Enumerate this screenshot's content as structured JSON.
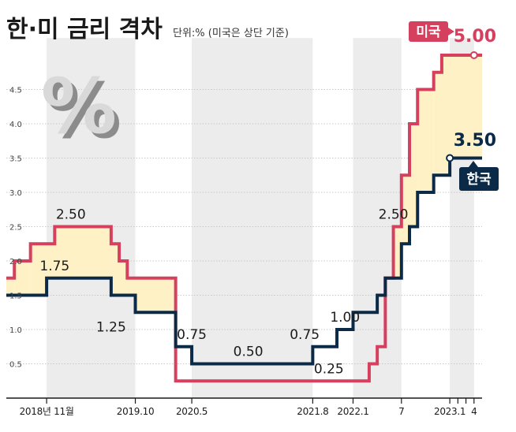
{
  "chart_data": {
    "type": "line",
    "step": true,
    "title": "한·미 금리 격차",
    "subtitle": "단위:% (미국은 상단 기준)",
    "ylim": [
      0,
      5.25
    ],
    "yticks": [
      0.5,
      1.0,
      1.5,
      2.0,
      2.5,
      3.0,
      3.5,
      4.0,
      4.5
    ],
    "ytick_labels": [
      "0.5",
      "1.0",
      "1.5",
      "2.0",
      "2.5",
      "3.0",
      "3.5",
      "4.0",
      "4.5"
    ],
    "xlim": [
      "2018-06",
      "2023-05"
    ],
    "x_ticks": [
      {
        "label": "2018년 11월",
        "x": "2018-11"
      },
      {
        "label": "2019.10",
        "x": "2019-10"
      },
      {
        "label": "2020.5",
        "x": "2020-05"
      },
      {
        "label": "2021.8",
        "x": "2021-08"
      },
      {
        "label": "2022.1",
        "x": "2022-01"
      },
      {
        "label": "7",
        "x": "2022-07"
      },
      {
        "label": "2023.1",
        "x": "2023-01"
      },
      {
        "label": "4",
        "x": "2023-04"
      }
    ],
    "extra_ticks": [
      "2023-02",
      "2023-03"
    ],
    "shaded_bands": [
      [
        "2018-11",
        "2019-10"
      ],
      [
        "2020-05",
        "2021-08"
      ],
      [
        "2022-01",
        "2022-07"
      ],
      [
        "2023-01",
        "2023-04"
      ]
    ],
    "series": [
      {
        "name": "미국",
        "color": "#d5405f",
        "points": [
          [
            "2018-06",
            1.75
          ],
          [
            "2018-07",
            2.0
          ],
          [
            "2018-09",
            2.25
          ],
          [
            "2018-12",
            2.5
          ],
          [
            "2019-07",
            2.25
          ],
          [
            "2019-08",
            2.0
          ],
          [
            "2019-09",
            1.75
          ],
          [
            "2020-03",
            0.25
          ],
          [
            "2022-03",
            0.5
          ],
          [
            "2022-04",
            0.75
          ],
          [
            "2022-05",
            1.75
          ],
          [
            "2022-06",
            2.5
          ],
          [
            "2022-07",
            3.25
          ],
          [
            "2022-08",
            4.0
          ],
          [
            "2022-09",
            4.5
          ],
          [
            "2022-11",
            4.75
          ],
          [
            "2022-12",
            5.0
          ],
          [
            "2023-05",
            5.0
          ]
        ]
      },
      {
        "name": "한국",
        "color": "#0b2a47",
        "points": [
          [
            "2018-06",
            1.5
          ],
          [
            "2018-11",
            1.75
          ],
          [
            "2019-07",
            1.5
          ],
          [
            "2019-10",
            1.25
          ],
          [
            "2020-03",
            0.75
          ],
          [
            "2020-05",
            0.5
          ],
          [
            "2021-08",
            0.75
          ],
          [
            "2021-11",
            1.0
          ],
          [
            "2022-01",
            1.25
          ],
          [
            "2022-04",
            1.5
          ],
          [
            "2022-05",
            1.75
          ],
          [
            "2022-07",
            2.25
          ],
          [
            "2022-08",
            2.5
          ],
          [
            "2022-09",
            3.0
          ],
          [
            "2022-11",
            3.25
          ],
          [
            "2023-01",
            3.5
          ],
          [
            "2023-05",
            3.5
          ]
        ]
      }
    ],
    "annotations": [
      {
        "text": "2.50",
        "x": "2019-02",
        "y": 2.5,
        "pos": "above"
      },
      {
        "text": "1.75",
        "x": "2018-12",
        "y": 1.75,
        "pos": "above"
      },
      {
        "text": "1.25",
        "x": "2019-07",
        "y": 1.25,
        "pos": "below"
      },
      {
        "text": "0.75",
        "x": "2020-05",
        "y": 0.75,
        "pos": "above"
      },
      {
        "text": "0.50",
        "x": "2020-12",
        "y": 0.5,
        "pos": "above"
      },
      {
        "text": "0.75",
        "x": "2021-07",
        "y": 0.75,
        "pos": "above"
      },
      {
        "text": "1.00",
        "x": "2021-12",
        "y": 1.0,
        "pos": "above"
      },
      {
        "text": "0.25",
        "x": "2021-10",
        "y": 0.25,
        "pos": "above"
      },
      {
        "text": "2.50",
        "x": "2022-06",
        "y": 2.5,
        "pos": "above"
      }
    ],
    "end_labels": [
      {
        "series": "미국",
        "badge": "미국",
        "value": "5.00",
        "x": "2023-04",
        "y": 5.0
      },
      {
        "series": "한국",
        "badge": "한국",
        "value": "3.50",
        "x": "2023-01",
        "y": 3.5
      }
    ],
    "gap_fill_color": "#fff1c6",
    "band_color": "#ececec",
    "grid": true,
    "legend": "none"
  },
  "decor": {
    "percent_icon": "percent-sign-icon",
    "percent_glyph": "%"
  }
}
